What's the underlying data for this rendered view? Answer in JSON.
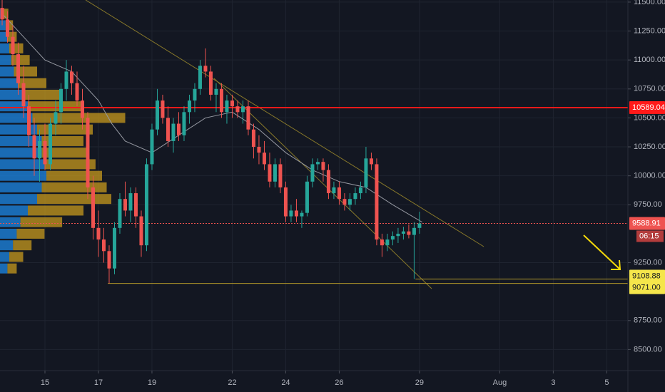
{
  "chart_data": {
    "type": "candlestick",
    "up_color": "#26a69a",
    "down_color": "#ef5350",
    "grid": true,
    "xlim": [
      13.32,
      36.79
    ],
    "xticks": [
      15,
      17,
      19,
      22,
      24,
      26,
      29,
      {
        "value": 32,
        "label": "Aug"
      },
      {
        "value": 34,
        "label": "3"
      },
      {
        "value": 36,
        "label": "5"
      }
    ],
    "ylim": [
      8318,
      11518
    ],
    "yticks": [
      {
        "value": 11500,
        "label": "11500.00"
      },
      {
        "value": 11250,
        "label": "11250.00"
      },
      {
        "value": 11000,
        "label": "11000.00"
      },
      {
        "value": 10750,
        "label": "10750.00"
      },
      {
        "value": 10500,
        "label": "10500.00"
      },
      {
        "value": 10250,
        "label": "10250.00"
      },
      {
        "value": 10000,
        "label": "10000.00"
      },
      {
        "value": 9750,
        "label": "9750.00"
      },
      {
        "value": 9250,
        "label": "9250.00"
      },
      {
        "value": 8750,
        "label": "8750.00"
      },
      {
        "value": 8500,
        "label": "8500.00"
      }
    ],
    "x": [
      13.4,
      13.6,
      13.8,
      14.0,
      14.2,
      14.4,
      14.6,
      14.8,
      15.0,
      15.2,
      15.4,
      15.6,
      15.8,
      16.0,
      16.2,
      16.4,
      16.6,
      16.8,
      17.0,
      17.2,
      17.4,
      17.6,
      17.8,
      18.0,
      18.2,
      18.4,
      18.6,
      18.8,
      19.0,
      19.2,
      19.4,
      19.6,
      19.8,
      20.0,
      20.2,
      20.4,
      20.6,
      20.8,
      21.0,
      21.2,
      21.4,
      21.6,
      21.8,
      22.0,
      22.2,
      22.4,
      22.6,
      22.8,
      23.0,
      23.2,
      23.4,
      23.6,
      23.8,
      24.0,
      24.2,
      24.4,
      24.6,
      24.8,
      25.0,
      25.2,
      25.4,
      25.6,
      25.8,
      26.0,
      26.2,
      26.4,
      26.6,
      26.8,
      27.0,
      27.2,
      27.4,
      27.6,
      27.8,
      28.0,
      28.2,
      28.4,
      28.6,
      28.8,
      29.0
    ],
    "open": [
      11450,
      11350,
      11200,
      11050,
      10800,
      10600,
      10350,
      10150,
      10300,
      10100,
      10450,
      10550,
      10750,
      10900,
      10800,
      10650,
      10500,
      9900,
      9550,
      9450,
      9350,
      9200,
      9550,
      9800,
      9700,
      9850,
      9650,
      9400,
      10100,
      10400,
      10650,
      10500,
      10300,
      10450,
      10350,
      10550,
      10650,
      10750,
      10950,
      10900,
      10700,
      10750,
      10550,
      10650,
      10600,
      10550,
      10600,
      10400,
      10250,
      10200,
      10100,
      9950,
      10100,
      9900,
      9650,
      9700,
      9650,
      9680,
      9950,
      10100,
      10120,
      10050,
      9850,
      9900,
      9800,
      9750,
      9800,
      9850,
      9900,
      10150,
      10100,
      9450,
      9400,
      9450,
      9480,
      9500,
      9520,
      9490,
      9550
    ],
    "high": [
      11520,
      11420,
      11300,
      11150,
      10950,
      10700,
      10500,
      10400,
      10450,
      10500,
      10650,
      10800,
      11000,
      10950,
      10900,
      10750,
      10550,
      10000,
      9700,
      9550,
      9400,
      9600,
      9850,
      9950,
      9900,
      9900,
      9700,
      10150,
      10450,
      10750,
      10700,
      10600,
      10500,
      10550,
      10600,
      10700,
      10800,
      11000,
      11100,
      10950,
      10800,
      10800,
      10700,
      10700,
      10650,
      10650,
      10650,
      10450,
      10350,
      10300,
      10200,
      10150,
      10150,
      9950,
      9750,
      9800,
      9700,
      10000,
      10150,
      10150,
      10150,
      10100,
      9950,
      9950,
      9850,
      9850,
      9900,
      9950,
      10250,
      10200,
      10150,
      9500,
      9500,
      9520,
      9550,
      9560,
      9580,
      9600,
      9690
    ],
    "low": [
      11300,
      11150,
      10950,
      10700,
      10500,
      10250,
      10000,
      9950,
      10050,
      10050,
      10350,
      10450,
      10650,
      10700,
      10600,
      10400,
      9800,
      9450,
      9300,
      9250,
      9071,
      9150,
      9500,
      9650,
      9600,
      9550,
      9300,
      9350,
      10050,
      10350,
      10450,
      10250,
      10200,
      10300,
      10300,
      10450,
      10550,
      10700,
      10850,
      10650,
      10550,
      10500,
      10450,
      10500,
      10500,
      10450,
      10350,
      10150,
      10100,
      10050,
      9900,
      9900,
      9850,
      9600,
      9600,
      9600,
      9550,
      9650,
      9900,
      10050,
      9950,
      9800,
      9800,
      9750,
      9700,
      9700,
      9750,
      9800,
      9850,
      10050,
      9400,
      9300,
      9350,
      9400,
      9420,
      9450,
      9460,
      9108.88,
      9500
    ],
    "close": [
      11350,
      11200,
      11050,
      10800,
      10600,
      10350,
      10150,
      10300,
      10100,
      10450,
      10550,
      10750,
      10900,
      10800,
      10650,
      10500,
      9900,
      9550,
      9450,
      9350,
      9200,
      9550,
      9800,
      9700,
      9850,
      9650,
      9400,
      10100,
      10400,
      10650,
      10500,
      10300,
      10450,
      10350,
      10550,
      10650,
      10750,
      10950,
      10900,
      10700,
      10750,
      10550,
      10650,
      10600,
      10550,
      10600,
      10400,
      10250,
      10200,
      10100,
      9950,
      10100,
      9900,
      9650,
      9700,
      9650,
      9680,
      9950,
      10100,
      10120,
      10050,
      9850,
      9900,
      9800,
      9750,
      9800,
      9850,
      9900,
      10150,
      10100,
      9450,
      9400,
      9450,
      9480,
      9500,
      9520,
      9490,
      9550,
      9588.91
    ],
    "ma": {
      "color": "#9598a1",
      "x": [
        13.4,
        14,
        15,
        16,
        17,
        17.5,
        18,
        19,
        20,
        21,
        22,
        23,
        24,
        25,
        26,
        27,
        28,
        29.1
      ],
      "values": [
        11400,
        11250,
        11000,
        10900,
        10650,
        10450,
        10300,
        10200,
        10350,
        10500,
        10550,
        10400,
        10200,
        10050,
        9950,
        9900,
        9750,
        9600
      ]
    },
    "volume_profile": {
      "levels": [
        9200,
        9300,
        9400,
        9500,
        9600,
        9700,
        9800,
        9900,
        10000,
        10100,
        10200,
        10300,
        10400,
        10500,
        10600,
        10700,
        10800,
        10900,
        11000,
        11100,
        11200,
        11300,
        11400
      ],
      "series": [
        {
          "color": "#1e88e5",
          "values": [
            8,
            10,
            14,
            18,
            22,
            30,
            40,
            45,
            50,
            48,
            45,
            45,
            40,
            35,
            30,
            25,
            20,
            15,
            12,
            10,
            8,
            6,
            4
          ]
        },
        {
          "color": "#c79a1e",
          "values": [
            10,
            15,
            20,
            30,
            45,
            60,
            80,
            70,
            60,
            55,
            50,
            45,
            60,
            100,
            60,
            40,
            30,
            25,
            20,
            15,
            10,
            8,
            5
          ]
        }
      ]
    },
    "hlines": [
      {
        "value": 10589.04,
        "label": "10589.04",
        "color": "#ff1a1a",
        "start": 13.32
      },
      {
        "value": 9588.91,
        "label": "9588.91",
        "color": "#ef5350",
        "start": 13.32
      },
      {
        "value": 9108.88,
        "label": "9108.88",
        "color": "#b59a2a",
        "start": 28.85
      },
      {
        "value": 9071,
        "label": "9071.00",
        "color": "#b59a2a",
        "start": 17.35
      }
    ],
    "countdown": "06:15"
  }
}
